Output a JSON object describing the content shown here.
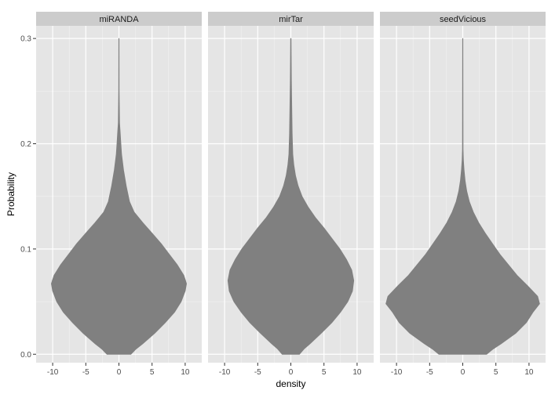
{
  "chart_data": {
    "type": "violin",
    "xlabel": "density",
    "ylabel": "Probability",
    "xlim": [
      -12.5,
      12.5
    ],
    "ylim": [
      -0.008,
      0.312
    ],
    "x_ticks": [
      -10,
      -5,
      0,
      5,
      10
    ],
    "x_tick_labels": [
      "-10",
      "-5",
      "0",
      "5",
      "10"
    ],
    "y_ticks": [
      0.0,
      0.1,
      0.2,
      0.3
    ],
    "y_tick_labels": [
      "0.0",
      "0.1",
      "0.2",
      "0.3"
    ],
    "grid": true,
    "fill_color": "#808080",
    "panel_background": "#e5e5e5",
    "strip_background": "#cccccc",
    "grid_color": "#ffffff",
    "panels": [
      {
        "label": "miRANDA",
        "profile": [
          [
            0.0,
            1.8
          ],
          [
            0.005,
            2.6
          ],
          [
            0.01,
            3.6
          ],
          [
            0.02,
            5.4
          ],
          [
            0.03,
            7.0
          ],
          [
            0.04,
            8.4
          ],
          [
            0.05,
            9.4
          ],
          [
            0.06,
            10.0
          ],
          [
            0.067,
            10.2
          ],
          [
            0.075,
            9.8
          ],
          [
            0.085,
            8.8
          ],
          [
            0.095,
            7.6
          ],
          [
            0.105,
            6.4
          ],
          [
            0.115,
            5.0
          ],
          [
            0.125,
            3.6
          ],
          [
            0.135,
            2.3
          ],
          [
            0.145,
            1.6
          ],
          [
            0.16,
            1.1
          ],
          [
            0.175,
            0.7
          ],
          [
            0.19,
            0.4
          ],
          [
            0.2,
            0.3
          ],
          [
            0.21,
            0.2
          ],
          [
            0.22,
            0.1
          ],
          [
            0.25,
            0.03
          ],
          [
            0.3,
            0.02
          ]
        ]
      },
      {
        "label": "mirTar",
        "profile": [
          [
            0.0,
            1.3
          ],
          [
            0.005,
            2.0
          ],
          [
            0.01,
            2.9
          ],
          [
            0.02,
            4.6
          ],
          [
            0.03,
            6.2
          ],
          [
            0.04,
            7.5
          ],
          [
            0.05,
            8.6
          ],
          [
            0.06,
            9.3
          ],
          [
            0.07,
            9.5
          ],
          [
            0.08,
            9.2
          ],
          [
            0.09,
            8.4
          ],
          [
            0.1,
            7.4
          ],
          [
            0.11,
            6.2
          ],
          [
            0.12,
            5.0
          ],
          [
            0.13,
            3.7
          ],
          [
            0.14,
            2.6
          ],
          [
            0.15,
            1.7
          ],
          [
            0.16,
            1.1
          ],
          [
            0.17,
            0.7
          ],
          [
            0.18,
            0.45
          ],
          [
            0.19,
            0.3
          ],
          [
            0.21,
            0.2
          ],
          [
            0.23,
            0.15
          ],
          [
            0.26,
            0.08
          ],
          [
            0.3,
            0.03
          ]
        ]
      },
      {
        "label": "seedVicious",
        "profile": [
          [
            0.0,
            3.6
          ],
          [
            0.005,
            4.6
          ],
          [
            0.01,
            5.8
          ],
          [
            0.02,
            8.0
          ],
          [
            0.03,
            9.6
          ],
          [
            0.04,
            10.6
          ],
          [
            0.048,
            11.6
          ],
          [
            0.055,
            11.3
          ],
          [
            0.065,
            9.8
          ],
          [
            0.075,
            8.2
          ],
          [
            0.085,
            6.9
          ],
          [
            0.095,
            5.6
          ],
          [
            0.105,
            4.5
          ],
          [
            0.115,
            3.4
          ],
          [
            0.125,
            2.4
          ],
          [
            0.135,
            1.6
          ],
          [
            0.145,
            1.0
          ],
          [
            0.155,
            0.6
          ],
          [
            0.165,
            0.35
          ],
          [
            0.175,
            0.2
          ],
          [
            0.185,
            0.1
          ],
          [
            0.195,
            0.05
          ],
          [
            0.3,
            0.02
          ]
        ]
      }
    ]
  }
}
